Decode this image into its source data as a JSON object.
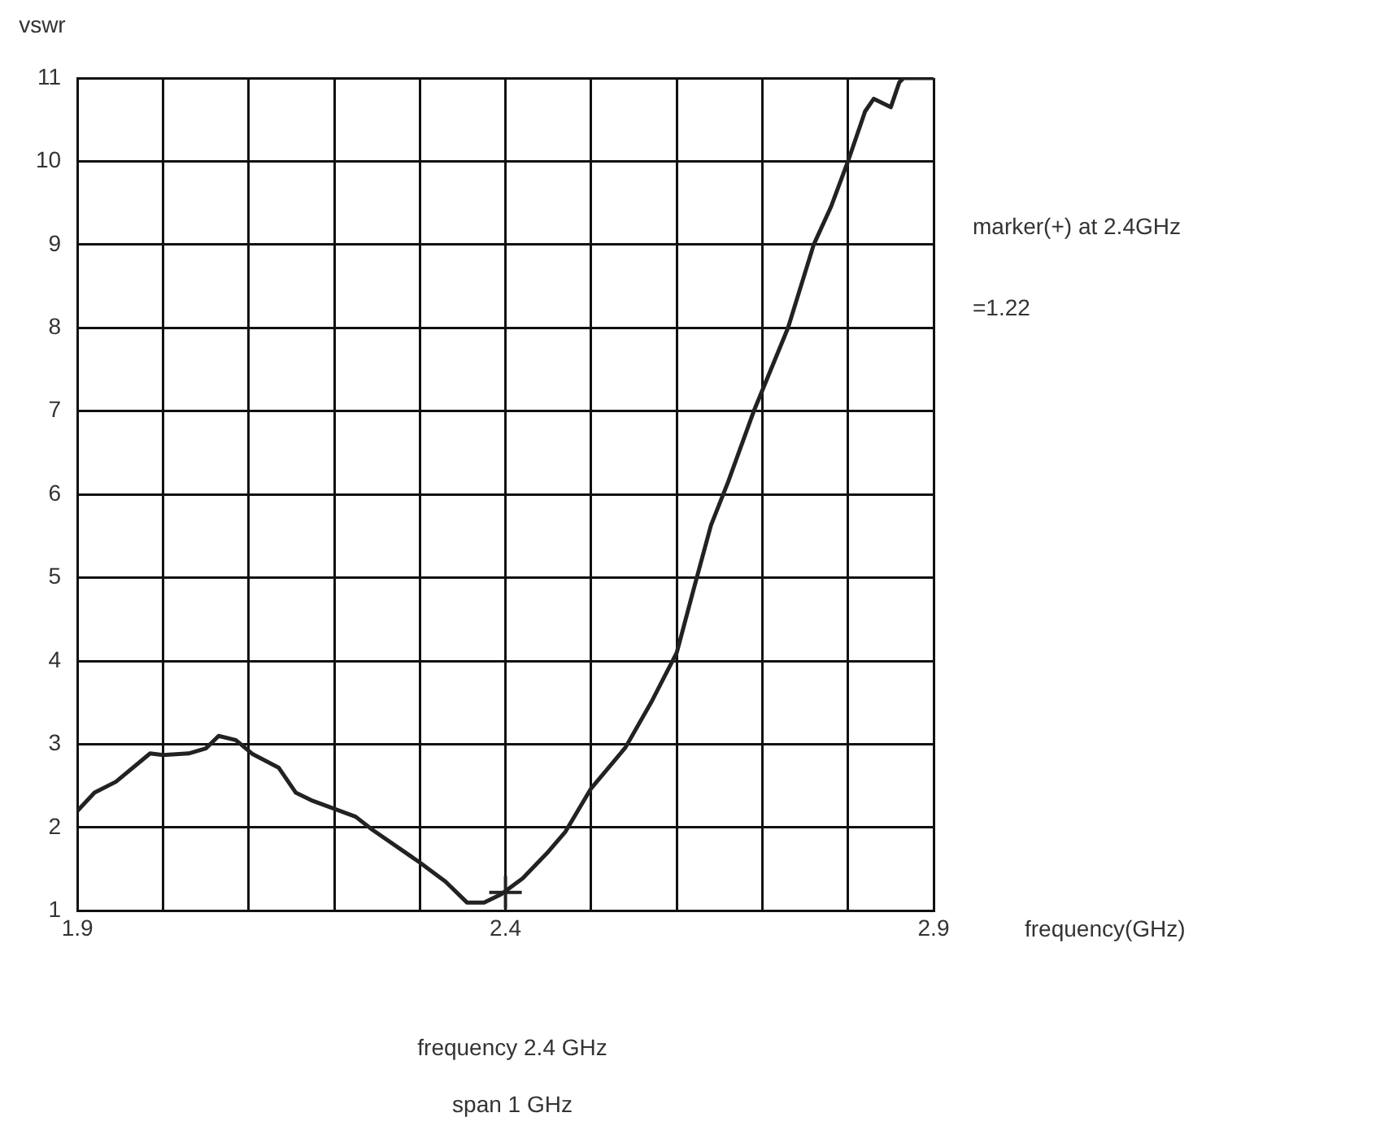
{
  "chart_data": {
    "type": "line",
    "xlabel": "frequency(GHz)",
    "ylabel": "vswr",
    "annotations": [
      "marker(+) at 2.4GHz",
      "=1.22",
      "frequency 2.4 GHz",
      "span 1 GHz"
    ],
    "xlim": [
      1.9,
      2.9
    ],
    "ylim": [
      1,
      11
    ],
    "xticks": [
      1.9,
      {
        "value": 2.0,
        "label": null
      },
      {
        "value": 2.1,
        "label": null
      },
      {
        "value": 2.2,
        "label": null
      },
      {
        "value": 2.3,
        "label": null
      },
      2.4,
      {
        "value": 2.5,
        "label": null
      },
      {
        "value": 2.6,
        "label": null
      },
      {
        "value": 2.7,
        "label": null
      },
      {
        "value": 2.8,
        "label": null
      },
      2.9
    ],
    "yticks": [
      1,
      2,
      3,
      4,
      5,
      6,
      7,
      8,
      9,
      10,
      11
    ],
    "grid": true,
    "legend": false,
    "marker": "none",
    "line_style": "solid",
    "series": [
      {
        "color": "#222222",
        "x": [
          1.9,
          1.92,
          1.945,
          1.985,
          2.0,
          2.03,
          2.05,
          2.065,
          2.085,
          2.105,
          2.135,
          2.155,
          2.175,
          2.225,
          2.245,
          2.3,
          2.33,
          2.355,
          2.375,
          2.395,
          2.42,
          2.45,
          2.47,
          2.5,
          2.54,
          2.57,
          2.6,
          2.62,
          2.64,
          2.66,
          2.69,
          2.73,
          2.76,
          2.78,
          2.8,
          2.82,
          2.83,
          2.85,
          2.86,
          2.865,
          2.9
        ],
        "values": [
          2.2,
          2.42,
          2.55,
          2.89,
          2.87,
          2.89,
          2.95,
          3.1,
          3.05,
          2.88,
          2.72,
          2.42,
          2.32,
          2.13,
          1.97,
          1.58,
          1.35,
          1.1,
          1.1,
          1.2,
          1.39,
          1.71,
          1.95,
          2.47,
          2.96,
          3.5,
          4.1,
          4.87,
          5.63,
          6.15,
          7.0,
          8.0,
          9.0,
          9.45,
          10.0,
          10.6,
          10.75,
          10.65,
          10.95,
          11.0,
          11.0
        ]
      },
      {
        "type": "scatter",
        "color": "#222222",
        "marker": "cross",
        "x": [
          2.4
        ],
        "values": [
          1.22
        ]
      }
    ]
  }
}
